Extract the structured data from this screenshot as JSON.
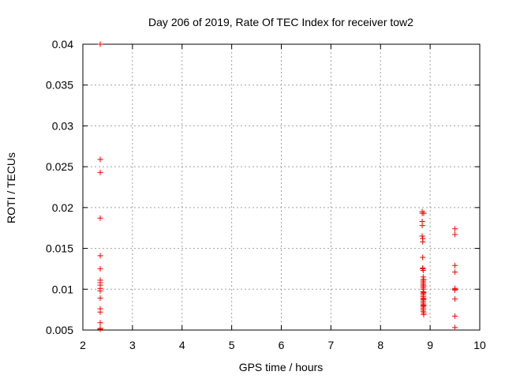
{
  "chart_data": {
    "type": "scatter",
    "title": "Day 206 of 2019, Rate Of TEC Index for receiver tow2",
    "xlabel": "GPS time / hours",
    "ylabel": "ROTI / TECUs",
    "xlim": [
      2,
      10
    ],
    "ylim": [
      0.005,
      0.04
    ],
    "xticks": [
      "2",
      "3",
      "4",
      "5",
      "6",
      "7",
      "8",
      "9",
      "10"
    ],
    "yticks": [
      "0.005",
      "0.01",
      "0.015",
      "0.02",
      "0.025",
      "0.03",
      "0.035",
      "0.04"
    ],
    "grid": true,
    "marker": "+",
    "color": "#ff0000",
    "series": [
      {
        "x": [
          2.35,
          2.35,
          2.35,
          2.35,
          2.35,
          2.35,
          2.35,
          2.35,
          2.35,
          2.35,
          2.35,
          2.35,
          2.35,
          2.35,
          2.35,
          2.35,
          2.35,
          8.84,
          8.84,
          8.84,
          8.84,
          8.84,
          8.85,
          8.85,
          8.85,
          8.85,
          8.85,
          8.86,
          8.86,
          8.86,
          8.86,
          8.86,
          8.86,
          8.86,
          8.86,
          8.86,
          8.86,
          8.86,
          8.86,
          8.86,
          8.86,
          8.86,
          8.86,
          8.86,
          8.86,
          8.86,
          8.86,
          8.86,
          8.86,
          8.87,
          8.87,
          8.87,
          8.87,
          8.87,
          8.87,
          8.87,
          8.87,
          9.5,
          9.5,
          9.5,
          9.5,
          9.5,
          9.5,
          9.5,
          9.5,
          9.5,
          9.5
        ],
        "y": [
          0.04,
          0.0259,
          0.0243,
          0.0187,
          0.0141,
          0.0125,
          0.0111,
          0.0108,
          0.0105,
          0.0101,
          0.0089,
          0.0076,
          0.0072,
          0.0059,
          0.0051,
          0.0052,
          0.0098,
          0.0195,
          0.0193,
          0.0183,
          0.0178,
          0.0165,
          0.0162,
          0.0158,
          0.0139,
          0.0126,
          0.0125,
          0.0123,
          0.0115,
          0.0112,
          0.011,
          0.0108,
          0.0106,
          0.0104,
          0.0102,
          0.01,
          0.0097,
          0.0095,
          0.0093,
          0.0091,
          0.0089,
          0.0087,
          0.0085,
          0.0083,
          0.0081,
          0.0079,
          0.0077,
          0.0075,
          0.0073,
          0.0071,
          0.0069,
          0.0112,
          0.0104,
          0.0096,
          0.0088,
          0.008,
          0.0193,
          0.0174,
          0.0167,
          0.0129,
          0.0121,
          0.0101,
          0.01,
          0.0088,
          0.0067,
          0.0053,
          0.0099
        ]
      }
    ]
  }
}
